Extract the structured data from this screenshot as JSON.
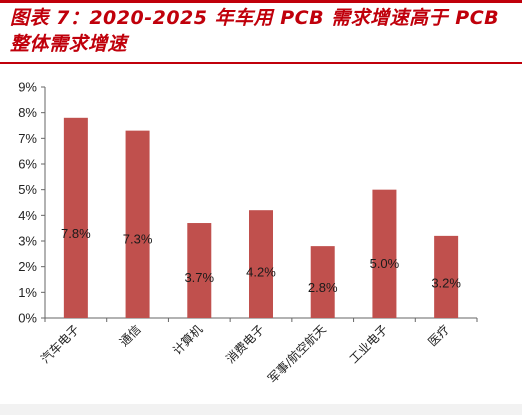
{
  "title": "图表 7：2020-2025 年车用 PCB 需求增速高于 PCB 整体需求增速",
  "colors": {
    "accent": "#c0000b",
    "bar": "#c0504d"
  },
  "chart_data": {
    "type": "bar",
    "categories": [
      "汽车电子",
      "通信",
      "计算机",
      "消费电子",
      "军事/航空航天",
      "工业电子",
      "医疗"
    ],
    "values": [
      7.8,
      7.3,
      3.7,
      4.2,
      2.8,
      5.0,
      3.2
    ],
    "data_labels": [
      "7.8%",
      "7.3%",
      "3.7%",
      "4.2%",
      "2.8%",
      "5.0%",
      "3.2%"
    ],
    "ylim": [
      0,
      9
    ],
    "y_ticks": [
      "0%",
      "1%",
      "2%",
      "3%",
      "4%",
      "5%",
      "6%",
      "7%",
      "8%",
      "9%"
    ],
    "grid": false,
    "legend": "none"
  }
}
